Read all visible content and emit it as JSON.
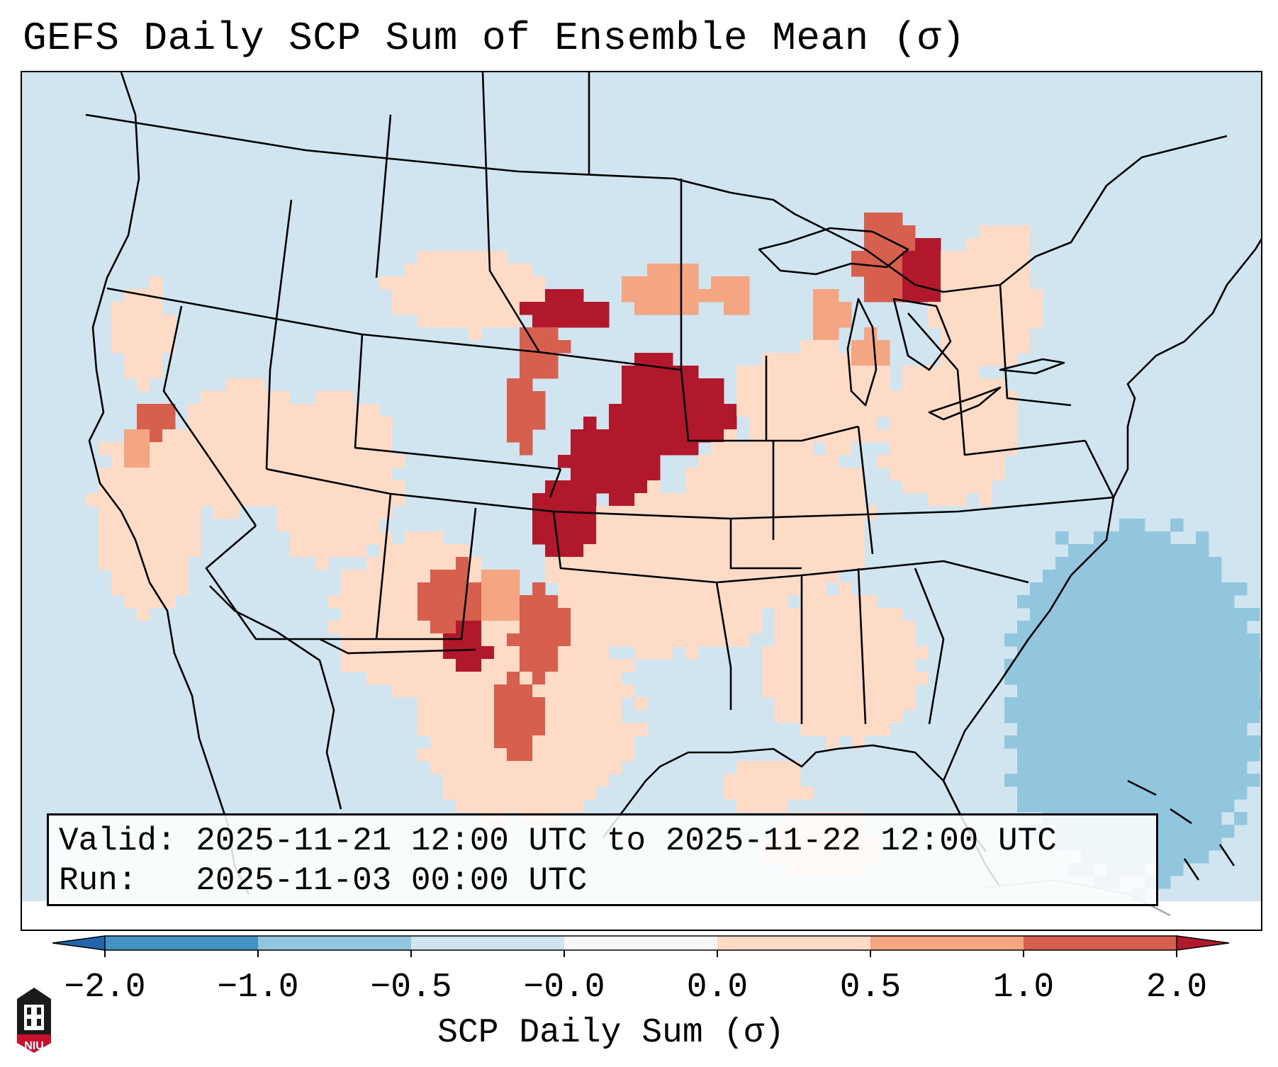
{
  "title": "GEFS Daily SCP Sum of Ensemble Mean (σ)",
  "info": {
    "valid": "Valid: 2025-11-21 12:00 UTC to 2025-11-22 12:00 UTC",
    "run": "Run:   2025-11-03 00:00 UTC"
  },
  "colorbar": {
    "label": "SCP Daily Sum (σ)",
    "ticks": [
      "−2.0",
      "−1.0",
      "−0.5",
      "−0.0",
      "0.0",
      "0.5",
      "1.0",
      "2.0"
    ],
    "colors": [
      "#2166ac",
      "#4393c3",
      "#92c5de",
      "#d1e5f0",
      "#f7f7f7",
      "#fddbc7",
      "#f4a582",
      "#d6604d",
      "#b2182b"
    ]
  },
  "logo": {
    "text": "NIU",
    "color": "#c8102e"
  },
  "map_data": {
    "region": "Contiguous United States",
    "background_value_class": "-0.5 to -0.0",
    "hotspots": [
      {
        "name": "Iowa / Southern Minnesota",
        "class": "1.0 to 2.0"
      },
      {
        "name": "Eastern Nebraska",
        "class": "1.0 to 2.0"
      },
      {
        "name": "Western Kansas",
        "class": "1.0 to 2.0"
      },
      {
        "name": "South Dakota / North Dakota border",
        "class": "1.0 to 2.0"
      },
      {
        "name": "New Mexico",
        "class": "0.5 to 2.0"
      },
      {
        "name": "Texas Panhandle / West Texas",
        "class": "0.5 to 1.0"
      },
      {
        "name": "Northern Michigan / Ontario",
        "class": "1.0 to 2.0"
      },
      {
        "name": "Northern California",
        "class": "0.0 to 1.0"
      }
    ],
    "cool_areas": [
      {
        "name": "Western Atlantic off Southeast coast",
        "class": "-1.0 to -0.5"
      }
    ]
  }
}
